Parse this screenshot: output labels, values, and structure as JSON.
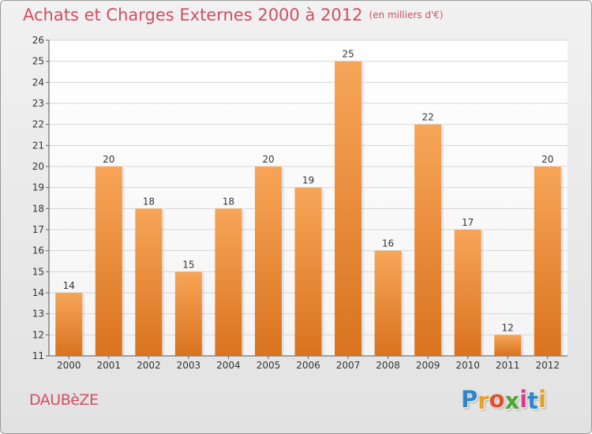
{
  "header": {
    "title": "Achats et Charges Externes 2000 à 2012",
    "unit": "(en milliers d'€)"
  },
  "footer": {
    "commune": "DAUBèZE",
    "brand_letters": [
      "P",
      "r",
      "o",
      "x",
      "i",
      "t",
      "i"
    ],
    "brand_colors": [
      "#2e86c9",
      "#e8a020",
      "#e0522c",
      "#4aa832",
      "#d93a8a",
      "#2e86c9",
      "#e8a020"
    ]
  },
  "colors": {
    "accent_text": "#d04f63",
    "bar_top": "#f7a558",
    "bar_bottom": "#d9731f"
  },
  "chart_data": {
    "type": "bar",
    "title": "Achats et Charges Externes 2000 à 2012",
    "subtitle": "(en milliers d'€)",
    "categories": [
      "2000",
      "2001",
      "2002",
      "2003",
      "2004",
      "2005",
      "2006",
      "2007",
      "2008",
      "2009",
      "2010",
      "2011",
      "2012"
    ],
    "values": [
      14,
      20,
      18,
      15,
      18,
      20,
      19,
      25,
      16,
      22,
      17,
      12,
      20
    ],
    "ylim": [
      11,
      26
    ],
    "yticks": [
      11,
      12,
      13,
      14,
      15,
      16,
      17,
      18,
      19,
      20,
      21,
      22,
      23,
      24,
      25,
      26
    ],
    "grid": true,
    "data_labels": true
  }
}
